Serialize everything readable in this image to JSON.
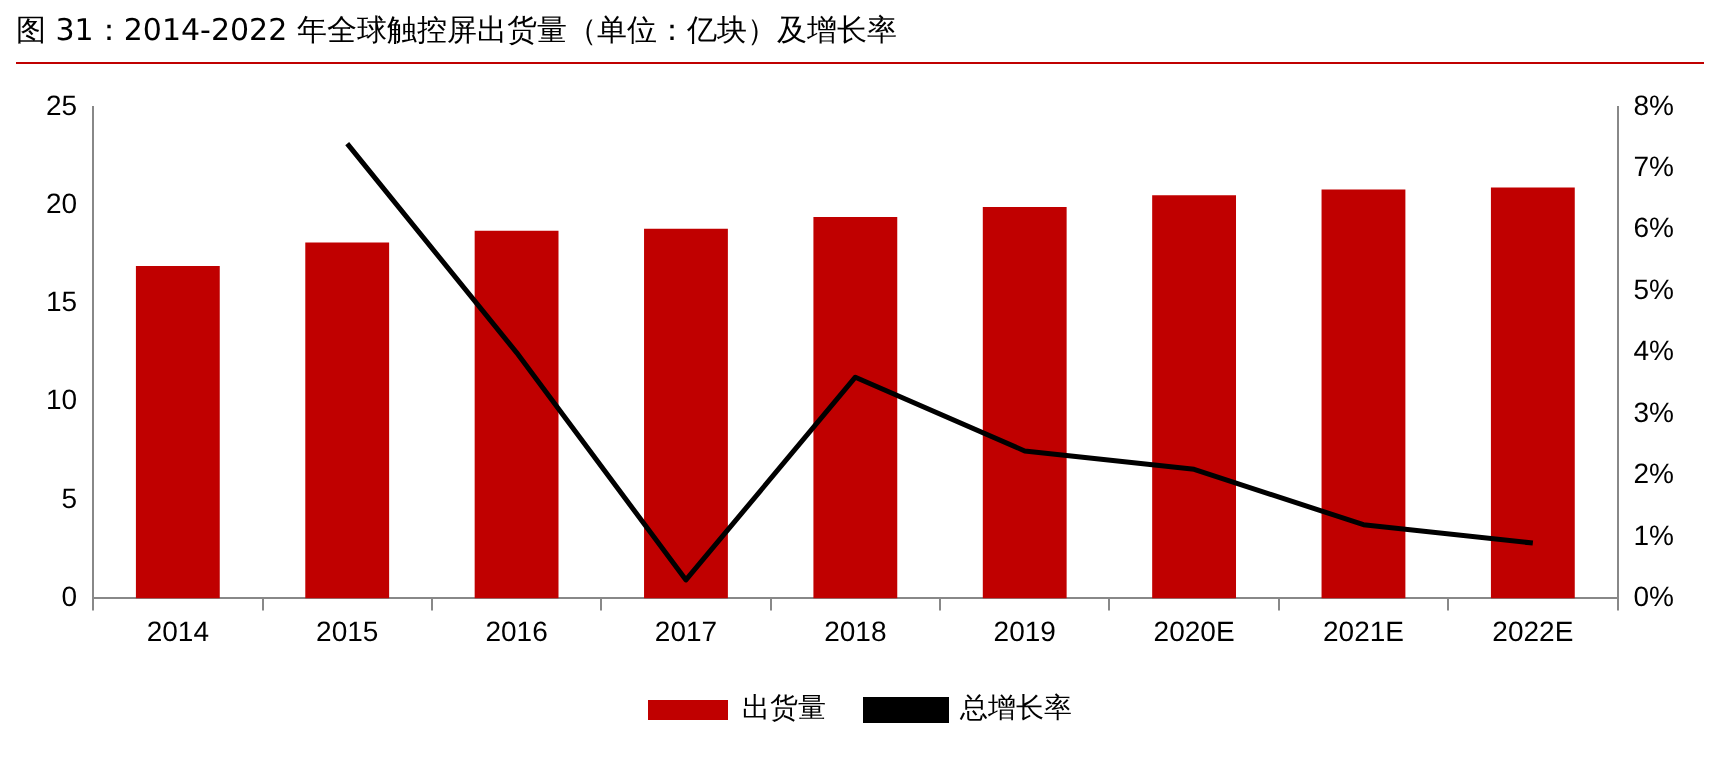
{
  "chart_data": {
    "type": "bar",
    "title": "图 31：2014-2022 年全球触控屏出货量（单位：亿块）及增长率",
    "categories": [
      "2014",
      "2015",
      "2016",
      "2017",
      "2018",
      "2019",
      "2020E",
      "2021E",
      "2022E"
    ],
    "series": [
      {
        "name": "出货量",
        "color": "#c00000",
        "values": [
          16.9,
          18.1,
          18.7,
          18.8,
          19.4,
          19.9,
          20.5,
          20.8,
          20.9
        ]
      },
      {
        "name": "总增长率",
        "type": "line",
        "axis": "y2",
        "color": "#000000",
        "values": [
          null,
          7.4,
          4.0,
          0.3,
          3.6,
          2.4,
          2.1,
          1.2,
          0.9
        ]
      }
    ],
    "ylim": [
      0,
      25
    ],
    "yticks": [
      0,
      5,
      10,
      15,
      20,
      25
    ],
    "y2lim": [
      0,
      8
    ],
    "y2ticks": [
      {
        "value": 0,
        "label": "0%"
      },
      {
        "value": 1,
        "label": "1%"
      },
      {
        "value": 2,
        "label": "2%"
      },
      {
        "value": 3,
        "label": "3%"
      },
      {
        "value": 4,
        "label": "4%"
      },
      {
        "value": 5,
        "label": "5%"
      },
      {
        "value": 6,
        "label": "6%"
      },
      {
        "value": 7,
        "label": "7%"
      },
      {
        "value": 8,
        "label": "8%"
      }
    ],
    "grid": false,
    "legend": "bottom",
    "marker": "none",
    "line_style": "solid"
  }
}
